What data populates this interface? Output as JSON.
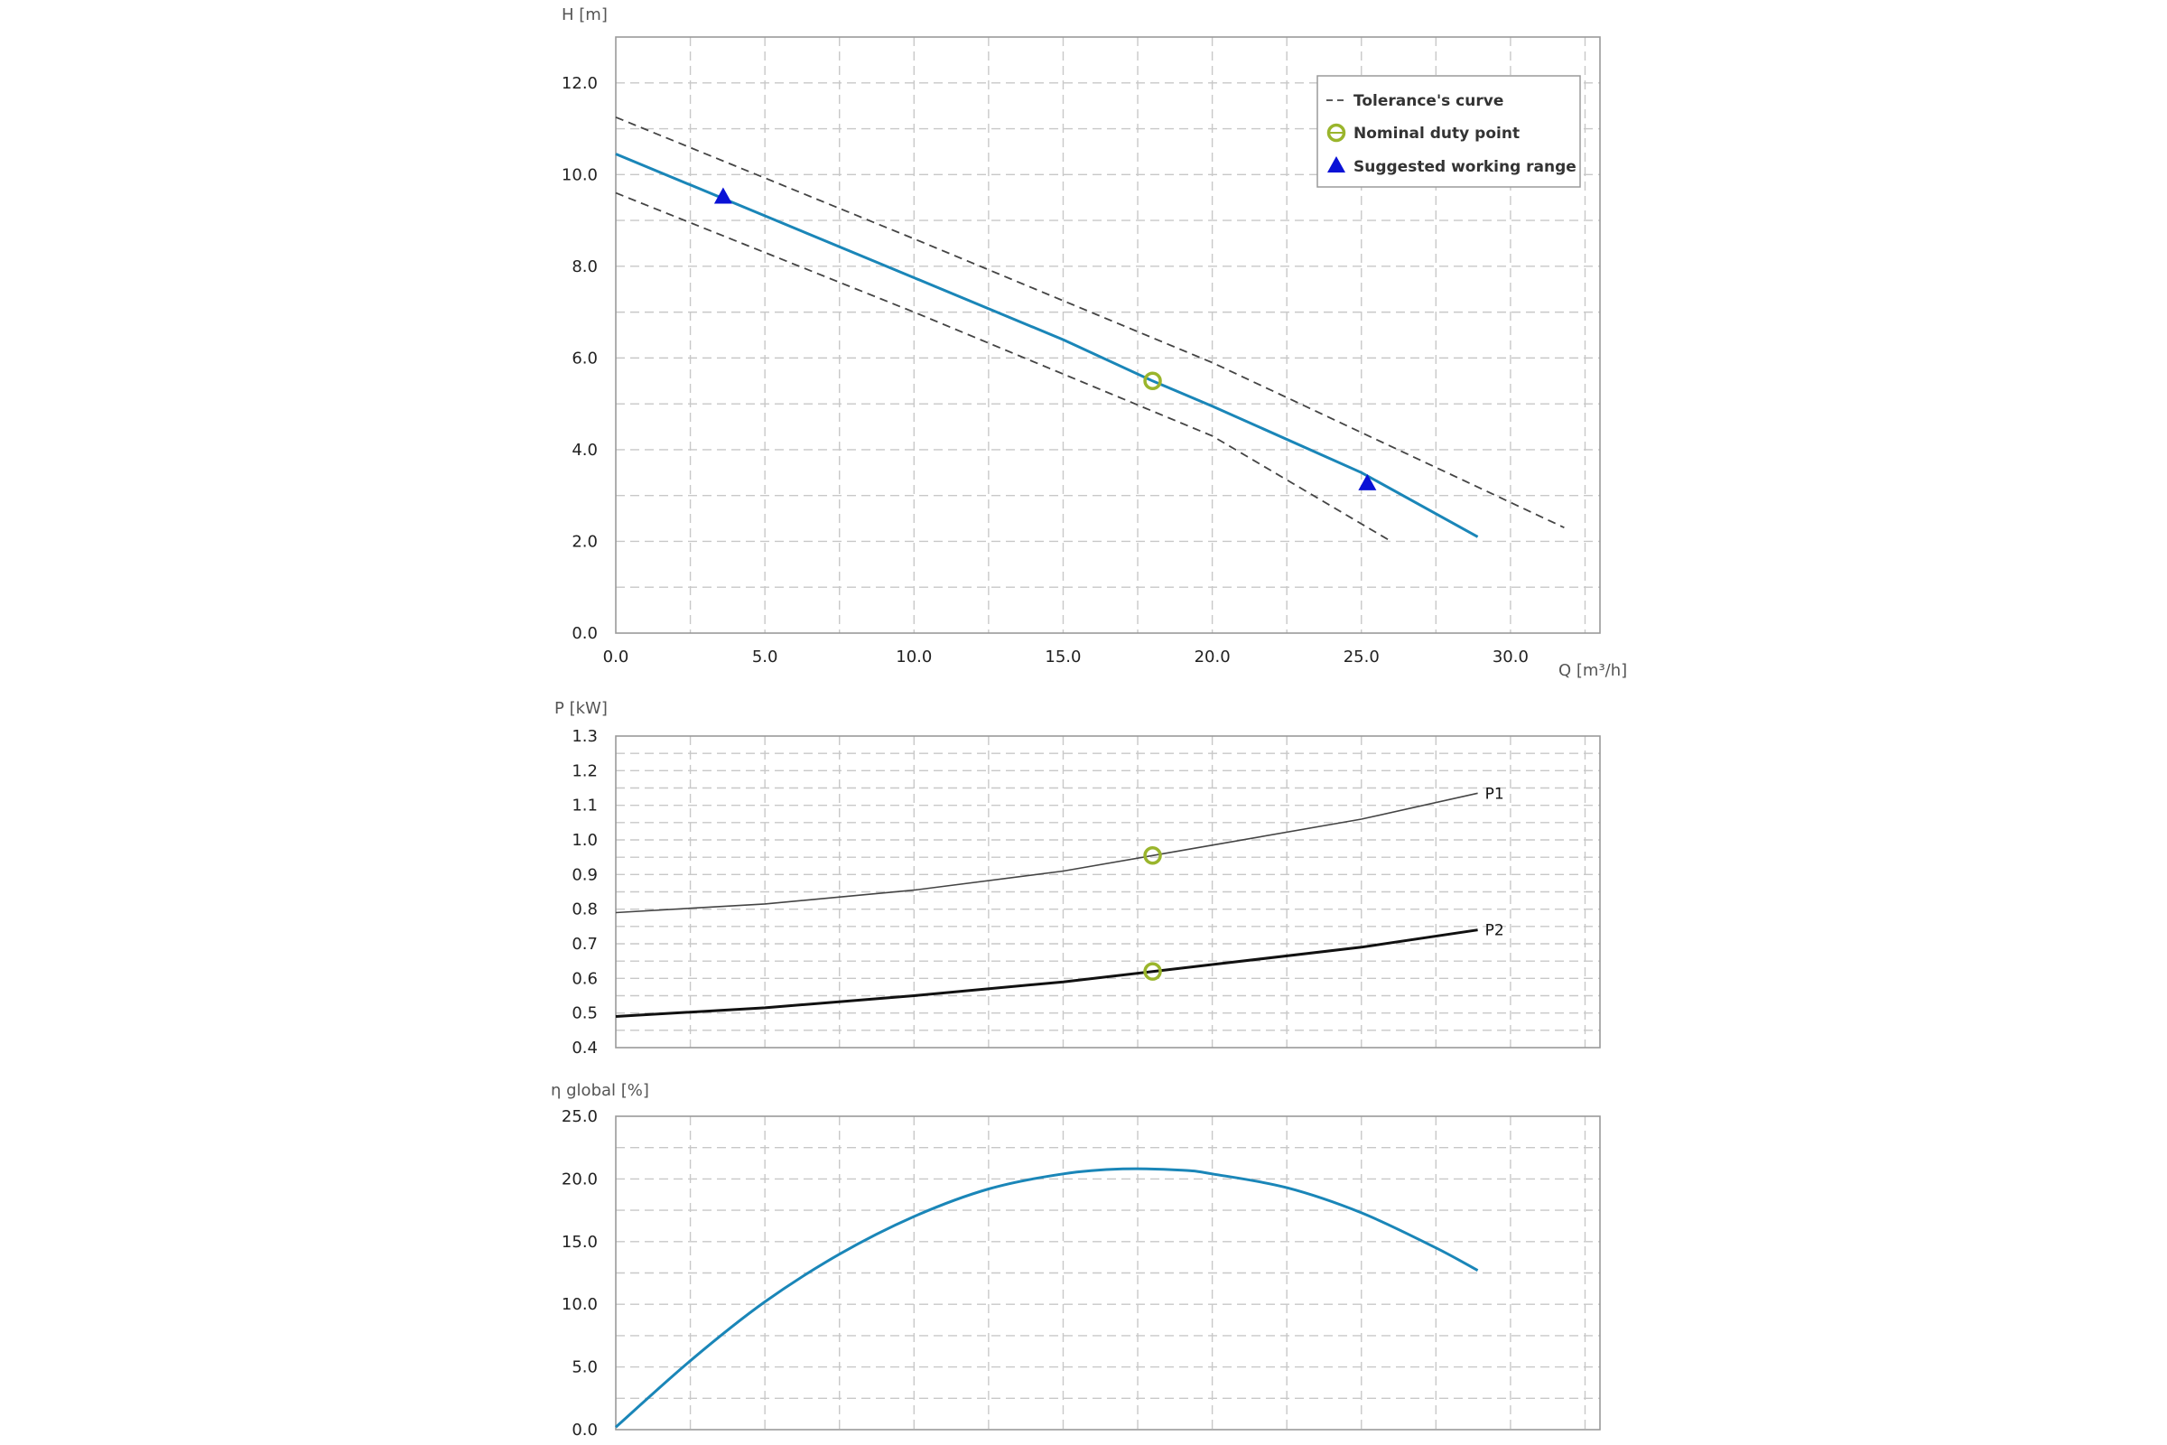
{
  "colors": {
    "curve": "#1a86b8",
    "tolerance": "#444444",
    "duty_point": "#9ab52c",
    "working_range": "#0a12d6",
    "p1": "#444444",
    "p2": "#111111",
    "grid": "#c8c8c8",
    "frame": "#9a9a9a"
  },
  "chart_data": [
    {
      "type": "line",
      "ylabel": "H [m]",
      "xlabel": "Q [m³/h]",
      "xlim": [
        0,
        33
      ],
      "ylim": [
        0,
        13
      ],
      "x_ticks": [
        0,
        5,
        10,
        15,
        20,
        25,
        30
      ],
      "x_tick_labels": [
        "0.0",
        "5.0",
        "10.0",
        "15.0",
        "20.0",
        "25.0",
        "30.0"
      ],
      "y_ticks": [
        0,
        2,
        4,
        6,
        8,
        10,
        12
      ],
      "y_tick_labels": [
        "0.0",
        "2.0",
        "4.0",
        "6.0",
        "8.0",
        "10.0",
        "12.0"
      ],
      "grid": true,
      "legend_position": "top-right",
      "legend": [
        {
          "label": "Tolerance's curve",
          "marker": "dashed-line"
        },
        {
          "label": "Nominal duty point",
          "marker": "open-circle"
        },
        {
          "label": "Suggested working range",
          "marker": "triangle"
        }
      ],
      "series": [
        {
          "role": "curve",
          "style": "solid",
          "points": [
            [
              0,
              10.45
            ],
            [
              5,
              9.1
            ],
            [
              10,
              7.75
            ],
            [
              15,
              6.4
            ],
            [
              18,
              5.5
            ],
            [
              20,
              4.95
            ],
            [
              25,
              3.5
            ],
            [
              28.9,
              2.1
            ]
          ]
        },
        {
          "role": "tolerance-upper",
          "style": "dashed",
          "points": [
            [
              0,
              11.25
            ],
            [
              10,
              8.6
            ],
            [
              20,
              5.9
            ],
            [
              31.8,
              2.3
            ]
          ]
        },
        {
          "role": "tolerance-lower",
          "style": "dashed",
          "points": [
            [
              0,
              9.6
            ],
            [
              10,
              7.0
            ],
            [
              20,
              4.3
            ],
            [
              26,
              2.0
            ]
          ]
        }
      ],
      "markers": [
        {
          "role": "duty-point",
          "shape": "open-circle",
          "x": 18,
          "y": 5.5
        },
        {
          "role": "working-range-start",
          "shape": "triangle",
          "x": 3.6,
          "y": 9.5
        },
        {
          "role": "working-range-end",
          "shape": "triangle",
          "x": 25.2,
          "y": 3.25
        }
      ]
    },
    {
      "type": "line",
      "ylabel": "P [kW]",
      "xlim": [
        0,
        33
      ],
      "ylim": [
        0.4,
        1.3
      ],
      "x_ticks": [
        0,
        5,
        10,
        15,
        20,
        25,
        30
      ],
      "x_tick_labels": [],
      "y_ticks": [
        0.4,
        0.5,
        0.6,
        0.7,
        0.8,
        0.9,
        1.0,
        1.1,
        1.2,
        1.3
      ],
      "y_tick_labels": [
        "0.4",
        "0.5",
        "0.6",
        "0.7",
        "0.8",
        "0.9",
        "1.0",
        "1.1",
        "1.2",
        "1.3"
      ],
      "grid": true,
      "series": [
        {
          "name": "P1",
          "color_key": "p1",
          "width": 1.6,
          "points": [
            [
              0,
              0.79
            ],
            [
              5,
              0.815
            ],
            [
              10,
              0.855
            ],
            [
              15,
              0.91
            ],
            [
              18,
              0.955
            ],
            [
              20,
              0.985
            ],
            [
              25,
              1.06
            ],
            [
              28.9,
              1.135
            ]
          ]
        },
        {
          "name": "P2",
          "color_key": "p2",
          "width": 3,
          "points": [
            [
              0,
              0.49
            ],
            [
              5,
              0.515
            ],
            [
              10,
              0.55
            ],
            [
              15,
              0.59
            ],
            [
              18,
              0.62
            ],
            [
              20,
              0.64
            ],
            [
              25,
              0.69
            ],
            [
              28.9,
              0.74
            ]
          ]
        }
      ],
      "markers": [
        {
          "role": "duty-point",
          "shape": "open-circle",
          "x": 18,
          "y": 0.955
        },
        {
          "role": "duty-point",
          "shape": "open-circle",
          "x": 18,
          "y": 0.62
        }
      ]
    },
    {
      "type": "line",
      "ylabel": "η global [%]",
      "xlim": [
        0,
        33
      ],
      "ylim": [
        0,
        25
      ],
      "x_ticks": [
        0,
        5,
        10,
        15,
        20,
        25,
        30
      ],
      "x_tick_labels": [],
      "y_ticks": [
        0,
        5,
        10,
        15,
        20,
        25
      ],
      "y_tick_labels": [
        "0.0",
        "5.0",
        "10.0",
        "15.0",
        "20.0",
        "25.0"
      ],
      "grid": true,
      "series": [
        {
          "role": "efficiency",
          "points": [
            [
              0,
              0.2
            ],
            [
              2.5,
              5.5
            ],
            [
              5,
              10.2
            ],
            [
              7.5,
              14.0
            ],
            [
              10,
              17.0
            ],
            [
              12.5,
              19.2
            ],
            [
              15,
              20.4
            ],
            [
              17,
              20.8
            ],
            [
              19,
              20.7
            ],
            [
              20,
              20.4
            ],
            [
              22.5,
              19.3
            ],
            [
              25,
              17.3
            ],
            [
              27.5,
              14.5
            ],
            [
              28.9,
              12.7
            ]
          ]
        }
      ]
    }
  ]
}
